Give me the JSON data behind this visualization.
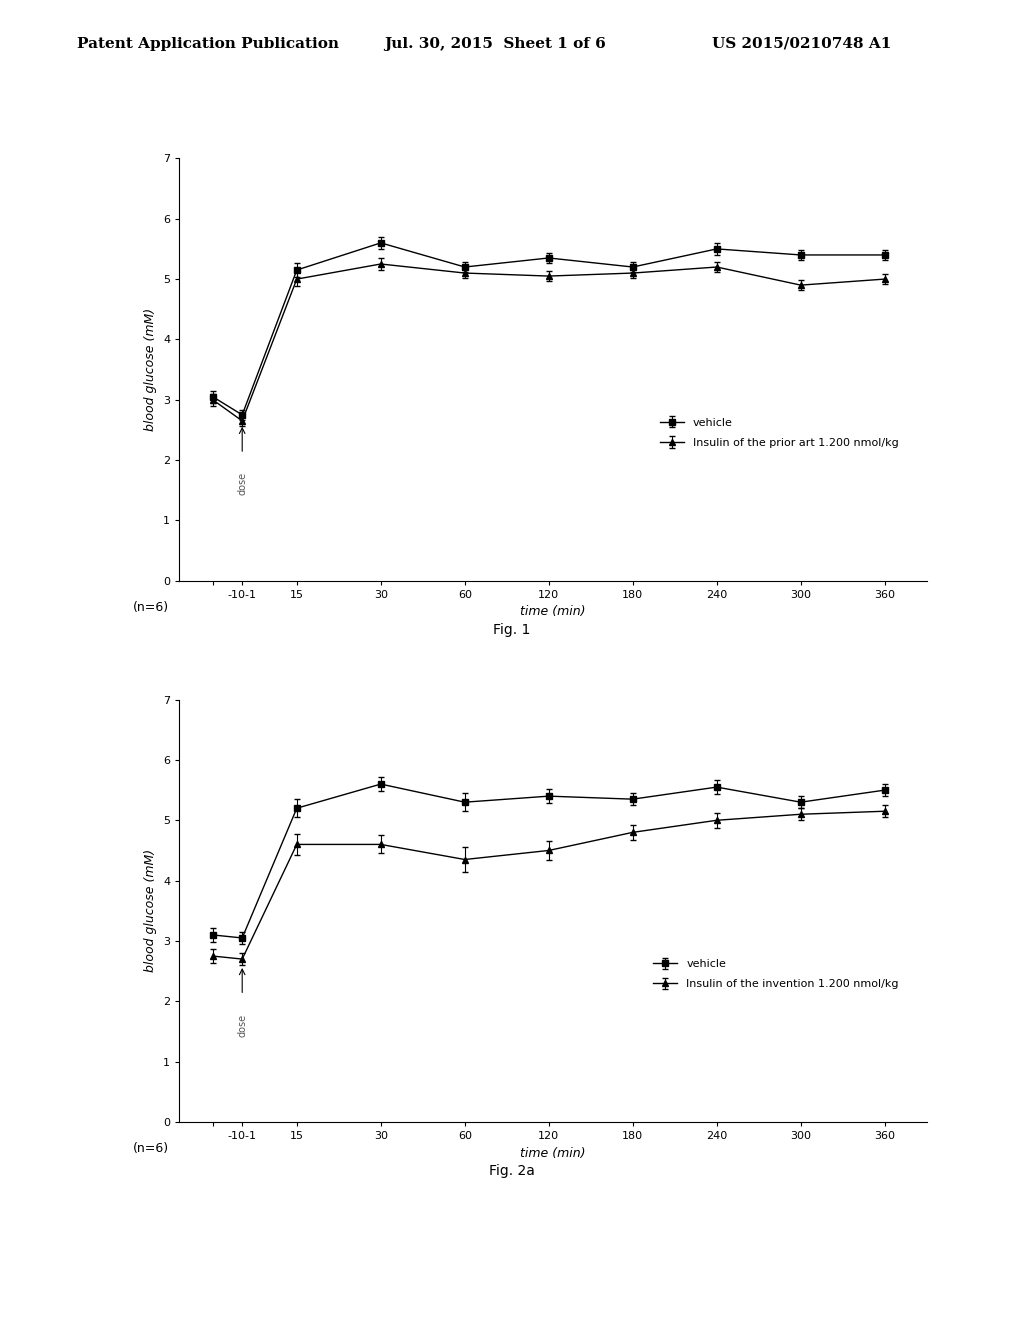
{
  "header_left": "Patent Application Publication",
  "header_mid": "Jul. 30, 2015  Sheet 1 of 6",
  "header_right": "US 2015/0210748 A1",
  "fig1": {
    "xlabel": "time (min)",
    "ylabel": "blood glucose (mM)",
    "ylim": [
      0,
      7
    ],
    "xtick_vals": [
      -10,
      1,
      15,
      30,
      60,
      120,
      180,
      240,
      300,
      360
    ],
    "xticklabels": [
      "-10-1",
      "15",
      "30",
      "60",
      "120",
      "180",
      "240",
      "300",
      "360"
    ],
    "yticks": [
      0,
      1,
      2,
      3,
      4,
      5,
      6,
      7
    ],
    "vehicle_t": [
      -10,
      1,
      15,
      30,
      60,
      120,
      180,
      240,
      300,
      360
    ],
    "vehicle_y": [
      3.05,
      2.75,
      5.15,
      5.6,
      5.2,
      5.35,
      5.2,
      5.5,
      5.4,
      5.4
    ],
    "vehicle_err": [
      0.1,
      0.08,
      0.12,
      0.1,
      0.08,
      0.08,
      0.08,
      0.1,
      0.08,
      0.08
    ],
    "insulin_t": [
      -10,
      1,
      15,
      30,
      60,
      120,
      180,
      240,
      300,
      360
    ],
    "insulin_y": [
      3.0,
      2.65,
      5.0,
      5.25,
      5.1,
      5.05,
      5.1,
      5.2,
      4.9,
      5.0
    ],
    "insulin_err": [
      0.1,
      0.08,
      0.12,
      0.1,
      0.08,
      0.08,
      0.08,
      0.08,
      0.08,
      0.08
    ],
    "legend1": "vehicle",
    "legend2": "Insulin of the prior art 1.200 nmol/kg",
    "label": "Fig. 1",
    "n_label": "(n=6)"
  },
  "fig2a": {
    "xlabel": "time (min)",
    "ylabel": "blood glucose (mM)",
    "ylim": [
      0,
      7
    ],
    "xtick_vals": [
      -10,
      1,
      15,
      30,
      60,
      120,
      180,
      240,
      300,
      360
    ],
    "xticklabels": [
      "-10-1",
      "15",
      "30",
      "60",
      "120",
      "180",
      "240",
      "300",
      "360"
    ],
    "yticks": [
      0,
      1,
      2,
      3,
      4,
      5,
      6,
      7
    ],
    "vehicle_t": [
      -10,
      1,
      15,
      30,
      60,
      120,
      180,
      240,
      300,
      360
    ],
    "vehicle_y": [
      3.1,
      3.05,
      5.2,
      5.6,
      5.3,
      5.4,
      5.35,
      5.55,
      5.3,
      5.5
    ],
    "vehicle_err": [
      0.12,
      0.1,
      0.15,
      0.12,
      0.15,
      0.12,
      0.1,
      0.12,
      0.1,
      0.1
    ],
    "insulin_t": [
      -10,
      1,
      15,
      30,
      60,
      120,
      180,
      240,
      300,
      360
    ],
    "insulin_y": [
      2.75,
      2.7,
      4.6,
      4.6,
      4.35,
      4.5,
      4.8,
      5.0,
      5.1,
      5.15
    ],
    "insulin_err": [
      0.12,
      0.1,
      0.18,
      0.15,
      0.2,
      0.15,
      0.12,
      0.12,
      0.1,
      0.1
    ],
    "legend1": "vehicle",
    "legend2": "Insulin of the invention 1.200 nmol/kg",
    "label": "Fig. 2a",
    "n_label": "(n=6)"
  },
  "background_color": "#ffffff",
  "fontsize_axis_label": 9,
  "fontsize_tick": 8,
  "fontsize_legend": 8,
  "fontsize_header": 11,
  "fontsize_fig_label": 10,
  "fontsize_n_label": 9
}
